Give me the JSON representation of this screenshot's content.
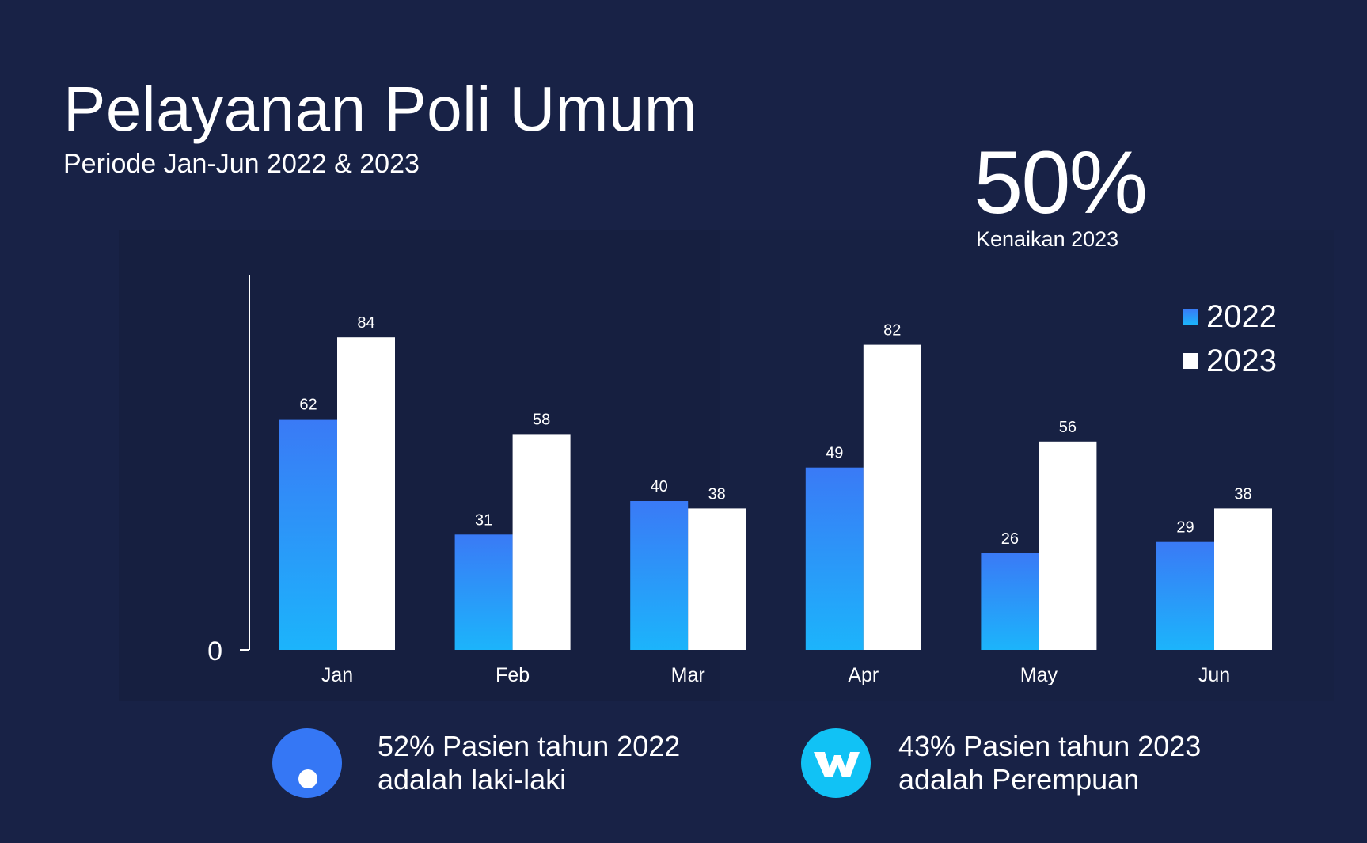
{
  "header": {
    "title": "Pelayanan Poli Umum",
    "subtitle": "Periode Jan-Jun 2022 & 2023"
  },
  "kpi": {
    "value": "50%",
    "label": "Kenaikan 2023"
  },
  "chart_data": {
    "type": "bar",
    "title": "Pelayanan Poli Umum",
    "categories": [
      "Jan",
      "Feb",
      "Mar",
      "Apr",
      "May",
      "Jun"
    ],
    "series": [
      {
        "name": "2022",
        "values": [
          62,
          31,
          40,
          49,
          26,
          29
        ],
        "color_top": "#3a7af6",
        "color_bottom": "#1cb4fb"
      },
      {
        "name": "2023",
        "values": [
          84,
          58,
          38,
          82,
          56,
          38
        ],
        "color": "#ffffff"
      }
    ],
    "ylim": [
      0,
      100
    ],
    "y_ticks": [
      "0"
    ],
    "xlabel": "",
    "ylabel": "",
    "grid": false,
    "legend_position": "top-right"
  },
  "legend": [
    {
      "label": "2022",
      "color": "#2a9af7"
    },
    {
      "label": "2023",
      "color": "#ffffff"
    }
  ],
  "stats": [
    {
      "icon": "circle-dot-icon",
      "color": "#3577f5",
      "text": "52% Pasien tahun 2022 adalah laki-laki"
    },
    {
      "icon": "w-logo-icon",
      "color": "#11c2f5",
      "text": "43% Pasien tahun 2023 adalah Perempuan"
    }
  ]
}
